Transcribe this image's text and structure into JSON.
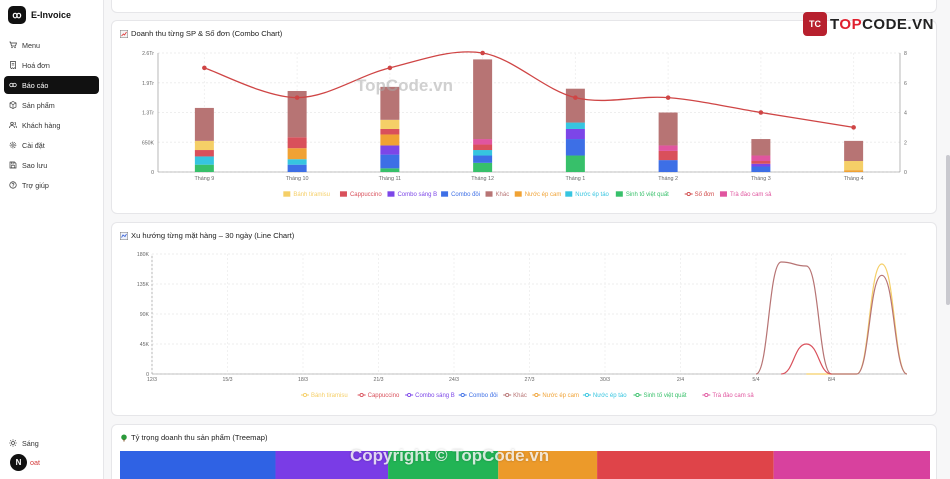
{
  "app": {
    "name": "E-Invoice",
    "logo_glyph": "ꝏ"
  },
  "sidebar": {
    "items": [
      {
        "label": "Menu",
        "icon": "cart-icon"
      },
      {
        "label": "Hoá đơn",
        "icon": "receipt-icon"
      },
      {
        "label": "Báo cáo",
        "icon": "report-icon",
        "active": true
      },
      {
        "label": "Sản phẩm",
        "icon": "box-icon"
      },
      {
        "label": "Khách hàng",
        "icon": "users-icon"
      },
      {
        "label": "Cài đặt",
        "icon": "gear-icon"
      },
      {
        "label": "Sao lưu",
        "icon": "save-icon"
      },
      {
        "label": "Trợ giúp",
        "icon": "help-icon"
      }
    ],
    "theme_label": "Sáng",
    "logout_label": "oat",
    "badge": "N"
  },
  "colors": {
    "Bánh tiramisu": "#f5cf67",
    "Cappuccino": "#d9505b",
    "Combo sáng B": "#7c46e8",
    "Combo đôi": "#3d6fe6",
    "Khác": "#b77474",
    "Nước ép cam": "#f0a234",
    "Nước ép táo": "#36c5e0",
    "Sinh tố việt quất": "#37c06a",
    "Số đơn": "#cf4545",
    "Trà đào cam sả": "#e0559f"
  },
  "combo": {
    "title": "Doanh thu từng SP & Số đơn (Combo Chart)",
    "title_icon": "chart-up-icon",
    "chart_data": {
      "type": "bar",
      "stacked": true,
      "categories": [
        "Tháng 9",
        "Tháng 10",
        "Tháng 11",
        "Tháng 12",
        "Tháng 1",
        "Tháng 2",
        "Tháng 3",
        "Tháng 4"
      ],
      "y_ticks": [
        "0",
        "650K",
        "1.3Tr",
        "1.9Tr",
        "2.6Tr"
      ],
      "ylim": [
        0,
        2600000
      ],
      "y2_ticks": [
        "0",
        "2",
        "4",
        "6",
        "8"
      ],
      "y2lim": [
        0,
        8
      ],
      "series": [
        {
          "name": "Sinh tố việt quất",
          "values": [
            160000,
            0,
            80000,
            200000,
            360000,
            0,
            0,
            0
          ]
        },
        {
          "name": "Combo đôi",
          "values": [
            0,
            160000,
            300000,
            160000,
            360000,
            260000,
            120000,
            0
          ]
        },
        {
          "name": "Combo sáng B",
          "values": [
            0,
            0,
            200000,
            0,
            220000,
            0,
            60000,
            0
          ]
        },
        {
          "name": "Nước ép táo",
          "values": [
            180000,
            120000,
            0,
            120000,
            140000,
            0,
            0,
            0
          ]
        },
        {
          "name": "Nước ép cam",
          "values": [
            0,
            240000,
            240000,
            0,
            0,
            0,
            0,
            40000
          ]
        },
        {
          "name": "Cappuccino",
          "values": [
            140000,
            240000,
            120000,
            120000,
            0,
            200000,
            60000,
            0
          ]
        },
        {
          "name": "Bánh tiramisu",
          "values": [
            200000,
            0,
            200000,
            0,
            0,
            0,
            0,
            200000
          ]
        },
        {
          "name": "Trà đào cam sả",
          "values": [
            0,
            0,
            0,
            120000,
            0,
            120000,
            120000,
            0
          ]
        },
        {
          "name": "Khác",
          "values": [
            720000,
            1010000,
            720000,
            1740000,
            740000,
            720000,
            360000,
            440000
          ]
        }
      ],
      "line": {
        "name": "Số đơn",
        "values": [
          7,
          5,
          7,
          8,
          5,
          5,
          4,
          3
        ]
      },
      "legend": [
        "Bánh tiramisu",
        "Cappuccino",
        "Combo sáng B",
        "Combo đôi",
        "Khác",
        "Nước ép cam",
        "Nước ép táo",
        "Sinh tố việt quất",
        "Số đơn",
        "Trà đào cam sả"
      ],
      "legend_position": "bottom"
    }
  },
  "trend": {
    "title": "Xu hướng từng mặt hàng – 30 ngày (Line Chart)",
    "title_icon": "chart-line-icon",
    "chart_data": {
      "type": "line",
      "x_ticks": [
        "12/3",
        "15/3",
        "18/3",
        "21/3",
        "24/3",
        "27/3",
        "30/3",
        "2/4",
        "5/4",
        "8/4"
      ],
      "y_ticks": [
        "0",
        "45K",
        "90K",
        "135K",
        "180K"
      ],
      "ylim": [
        0,
        180000
      ],
      "days": 30,
      "series": [
        {
          "name": "Bánh tiramisu",
          "points": [
            [
              26,
              0
            ],
            [
              28,
              0
            ],
            [
              29,
              165000
            ],
            [
              30,
              0
            ]
          ]
        },
        {
          "name": "Khác",
          "points": [
            [
              24,
              0
            ],
            [
              25,
              168000
            ],
            [
              26,
              162000
            ],
            [
              27,
              0
            ],
            [
              28,
              0
            ],
            [
              29,
              148000
            ],
            [
              30,
              0
            ]
          ]
        },
        {
          "name": "Cappuccino",
          "points": [
            [
              25,
              0
            ],
            [
              26,
              45000
            ],
            [
              27,
              0
            ]
          ]
        }
      ],
      "legend": [
        "Bánh tiramisu",
        "Cappuccino",
        "Combo sáng B",
        "Combo đôi",
        "Khác",
        "Nước ép cam",
        "Nước ép táo",
        "Sinh tố việt quất",
        "Trà đào cam sả"
      ],
      "legend_position": "bottom"
    }
  },
  "treemap": {
    "title": "Tỷ trọng doanh thu sản phẩm (Treemap)",
    "title_icon": "tree-icon",
    "tiles": [
      {
        "color": "#2f62e4",
        "share": 0.192
      },
      {
        "color": "#7a3ce6",
        "share": 0.139
      },
      {
        "color": "#22b455",
        "share": 0.136
      },
      {
        "color": "#ec9a2a",
        "share": 0.122
      },
      {
        "color": "#df4449",
        "share": 0.218
      },
      {
        "color": "#d8419e",
        "share": 0.193
      }
    ]
  },
  "watermark": {
    "brand_prefix": "T",
    "brand_hl": "OP",
    "brand_rest": "CODE.VN",
    "brand_shield": "TC",
    "center": "TopCode.vn",
    "bottom": "Copyright © TopCode.vn"
  }
}
